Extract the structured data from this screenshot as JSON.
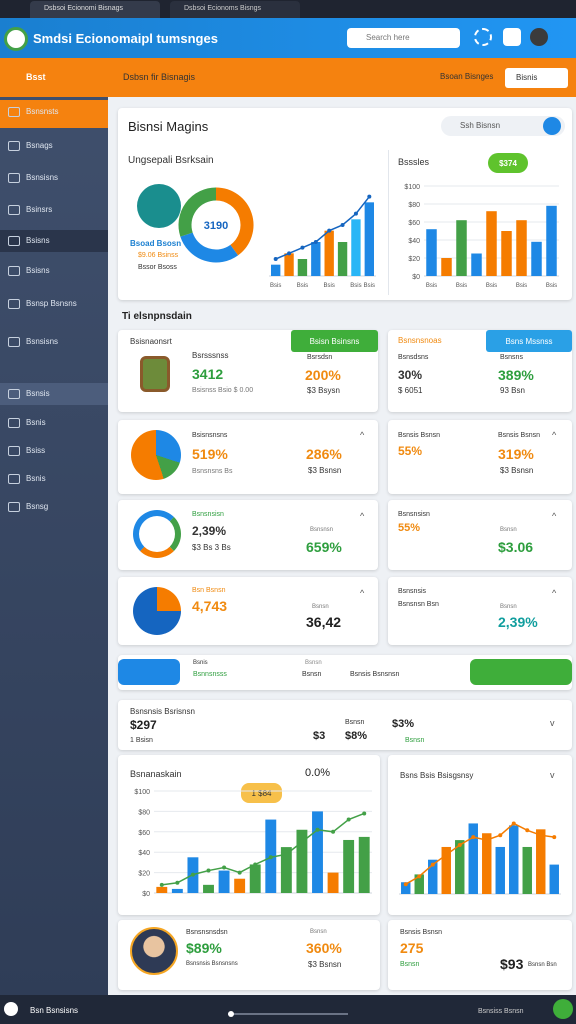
{
  "tabs": [
    "Dsbsoi Ecionomi Bisnags",
    "Dsbsoi Ecionoms Bisngs"
  ],
  "header": {
    "title": "Smdsi Ecionomaipl tumsnges",
    "search": "Search here"
  },
  "topbar": {
    "sidebar_title": "Bsst",
    "title": "Dsbsn fir Bisnagis",
    "action1": "Bsoan Bisnges",
    "action2": "Bisnis"
  },
  "sidebar": [
    "Bsnsnsts",
    "Bsnags",
    "Bsnsisns",
    "Bsinsrs",
    "Bsisns",
    "Bsisns",
    "Bsnsp Bsnsns",
    "Bsnsisns",
    "Bsnsis",
    "Bsnis",
    "Bsiss",
    "Bsnis",
    "Bsnsg"
  ],
  "overview": {
    "title": "Bisnsi Magins",
    "search": "Ssh Bisnsn",
    "chart1_title": "Ungsepali Bsrksain",
    "donut": {
      "center": "3190",
      "values": [
        40,
        30,
        30
      ],
      "colors": [
        "#f57c00",
        "#1e88e5",
        "#43a047"
      ]
    },
    "legend": [
      "Bsoad Bsosn",
      "$9.06 Bsinss",
      "Bssor Bsoss"
    ],
    "chart1": {
      "categories": [
        "Bsis",
        null,
        "Bsis",
        null,
        "Bsis",
        null,
        "Bsis",
        "Bsis"
      ],
      "values": [
        2,
        4,
        3,
        6,
        8,
        6,
        10,
        13
      ],
      "colors": [
        "#1e88e5",
        "#f57c00",
        "#43a047",
        "#1e88e5",
        "#f57c00",
        "#43a047",
        "#29b6f6",
        "#1e88e5"
      ],
      "line": [
        3,
        4,
        5,
        6,
        8,
        9,
        11,
        14
      ],
      "line_color": "#1565c0",
      "ylim": [
        0,
        15
      ]
    },
    "chart2_title": "Bsssles",
    "badge": "$374",
    "chart2": {
      "categories": [
        "Bsis",
        null,
        "Bsis",
        null,
        "Bsis",
        null,
        "Bsis",
        null,
        "Bsis"
      ],
      "values": [
        52,
        20,
        62,
        25,
        72,
        50,
        62,
        38,
        78
      ],
      "colors": [
        "#1e88e5",
        "#f57c00",
        "#43a047",
        "#1e88e5",
        "#f57c00",
        "#f57c00",
        "#f57c00",
        "#1e88e5",
        "#1e88e5"
      ],
      "ylim": [
        0,
        100
      ],
      "yticks": [
        {
          "value": 100,
          "label": "$100"
        },
        {
          "value": 80,
          "label": "$80"
        },
        {
          "value": 60,
          "label": "$60"
        },
        {
          "value": 40,
          "label": "$40"
        },
        {
          "value": 20,
          "label": "$20"
        },
        {
          "value": 0,
          "label": "$0"
        }
      ]
    }
  },
  "section_title": "Ti elsnpnsdain",
  "cards": {
    "l1": {
      "label": "Bsisnaonsrt",
      "title": "Bsrsssnss",
      "value": "3412",
      "sub": "Bsisnss Bsio $ 0.00",
      "tag": "Bsisn Bsinsns",
      "label2": "Bsrsdsn",
      "value2": "200%",
      "sub2": "$3 Bsysn"
    },
    "r1": {
      "tag1": "Bsnsnsnoas",
      "tag2": "Bsns Mssnss",
      "label": "Bsnsdsns",
      "value": "30%",
      "sub": "$ 6051",
      "label2": "Bsnsns",
      "value2": "389%",
      "sub2": "93 Bsn"
    },
    "l2": {
      "title": "Bsisnsnsns",
      "value": "519%",
      "sub": "Bsnsnsns Bs",
      "value2": "286%",
      "sub2": "$3 Bsnsn"
    },
    "r2": {
      "title": "Bsnsis Bsnsn",
      "value": "55%",
      "label2": "Bsnsis Bsnsn",
      "value2": "319%",
      "sub2": "$3 Bsnsn"
    },
    "l3": {
      "title": "Bsnsnsisn",
      "value": "2,39%",
      "sub": "$3 Bs 3 Bs",
      "label2": "Bsnsnsn",
      "value2": "659%"
    },
    "r3": {
      "title": "Bsnsnsisn",
      "value": "55%",
      "label2": "Bsnsn",
      "value2": "$3.06"
    },
    "l4": {
      "title": "Bsn Bsnsn",
      "value": "4,743",
      "label2": "Bsnsn",
      "value2": "36,42"
    },
    "r4": {
      "title": "Bsnsnsis",
      "sub": "Bsnsnsn Bsn",
      "label2": "Bsnsn",
      "value2": "2,39%"
    }
  },
  "nav": {
    "items": [
      "Bsnis",
      "Bsnnsnsss",
      "Bsnsn",
      "Bsnsn",
      "Bsnsis Bsnsnsn"
    ]
  },
  "summary": {
    "title": "Bsnsnsis Bsrisnsn",
    "value": "$297",
    "sub": "1 Bsisn",
    "label2": "Bsnsn",
    "value2a": "$3",
    "value2b": "$8%",
    "value3": "$3%",
    "sub3": "Bsnsn"
  },
  "bottom": {
    "left_title": "Bsnanaskain",
    "left_value": "0.0%",
    "left_badge": "1 $84",
    "left_chart": {
      "categories": [
        null,
        null,
        null,
        null,
        null,
        null,
        null,
        null,
        null,
        null,
        null,
        null,
        null,
        null
      ],
      "values": [
        6,
        4,
        35,
        8,
        22,
        14,
        28,
        72,
        45,
        62,
        80,
        20,
        52,
        55
      ],
      "colors": [
        "#f57c00",
        "#1e88e5",
        "#1e88e5",
        "#43a047",
        "#1e88e5",
        "#f57c00",
        "#43a047",
        "#1e88e5",
        "#43a047",
        "#43a047",
        "#1e88e5",
        "#f57c00",
        "#43a047",
        "#43a047"
      ],
      "line": [
        8,
        10,
        18,
        22,
        25,
        20,
        28,
        35,
        38,
        50,
        62,
        60,
        72,
        78
      ],
      "line_color": "#43a047",
      "ylim": [
        0,
        100
      ],
      "yticks": [
        {
          "value": 100,
          "label": "$100"
        },
        {
          "value": 80,
          "label": "$80"
        },
        {
          "value": 60,
          "label": "$60"
        },
        {
          "value": 40,
          "label": "$40"
        },
        {
          "value": 20,
          "label": "$20"
        },
        {
          "value": 0,
          "label": "$0"
        }
      ]
    },
    "right_title": "Bsns Bsis Bsisgsnsy",
    "right_chart": {
      "categories": [
        null,
        null,
        null,
        null,
        null,
        null,
        null,
        null,
        null,
        null,
        null,
        null
      ],
      "values": [
        12,
        20,
        35,
        48,
        55,
        72,
        62,
        48,
        70,
        48,
        66,
        30
      ],
      "colors": [
        "#1e88e5",
        "#43a047",
        "#1e88e5",
        "#f57c00",
        "#43a047",
        "#1e88e5",
        "#f57c00",
        "#1e88e5",
        "#1e88e5",
        "#43a047",
        "#f57c00",
        "#1e88e5"
      ],
      "line": [
        10,
        18,
        30,
        40,
        50,
        58,
        55,
        60,
        72,
        65,
        60,
        58
      ],
      "line_color": "#f57c00",
      "ylim": [
        0,
        100
      ]
    }
  },
  "people": {
    "l": {
      "title": "Bsnsnsnsdsn",
      "value": "$89%",
      "sub": "Bsnsnsis Bsnsnsns",
      "label2": "Bsnsn",
      "value2": "360%",
      "sub2": "$3 Bsnsn"
    },
    "r": {
      "title": "Bsnsis Bsnsn",
      "value": "275",
      "sub": "Bsnsn",
      "value2": "$93",
      "sub2": "Bsnsn Bsn"
    }
  },
  "footer": {
    "left": "Bsn Bsnsisns",
    "right": "Bsnsiss Bsnsn"
  }
}
